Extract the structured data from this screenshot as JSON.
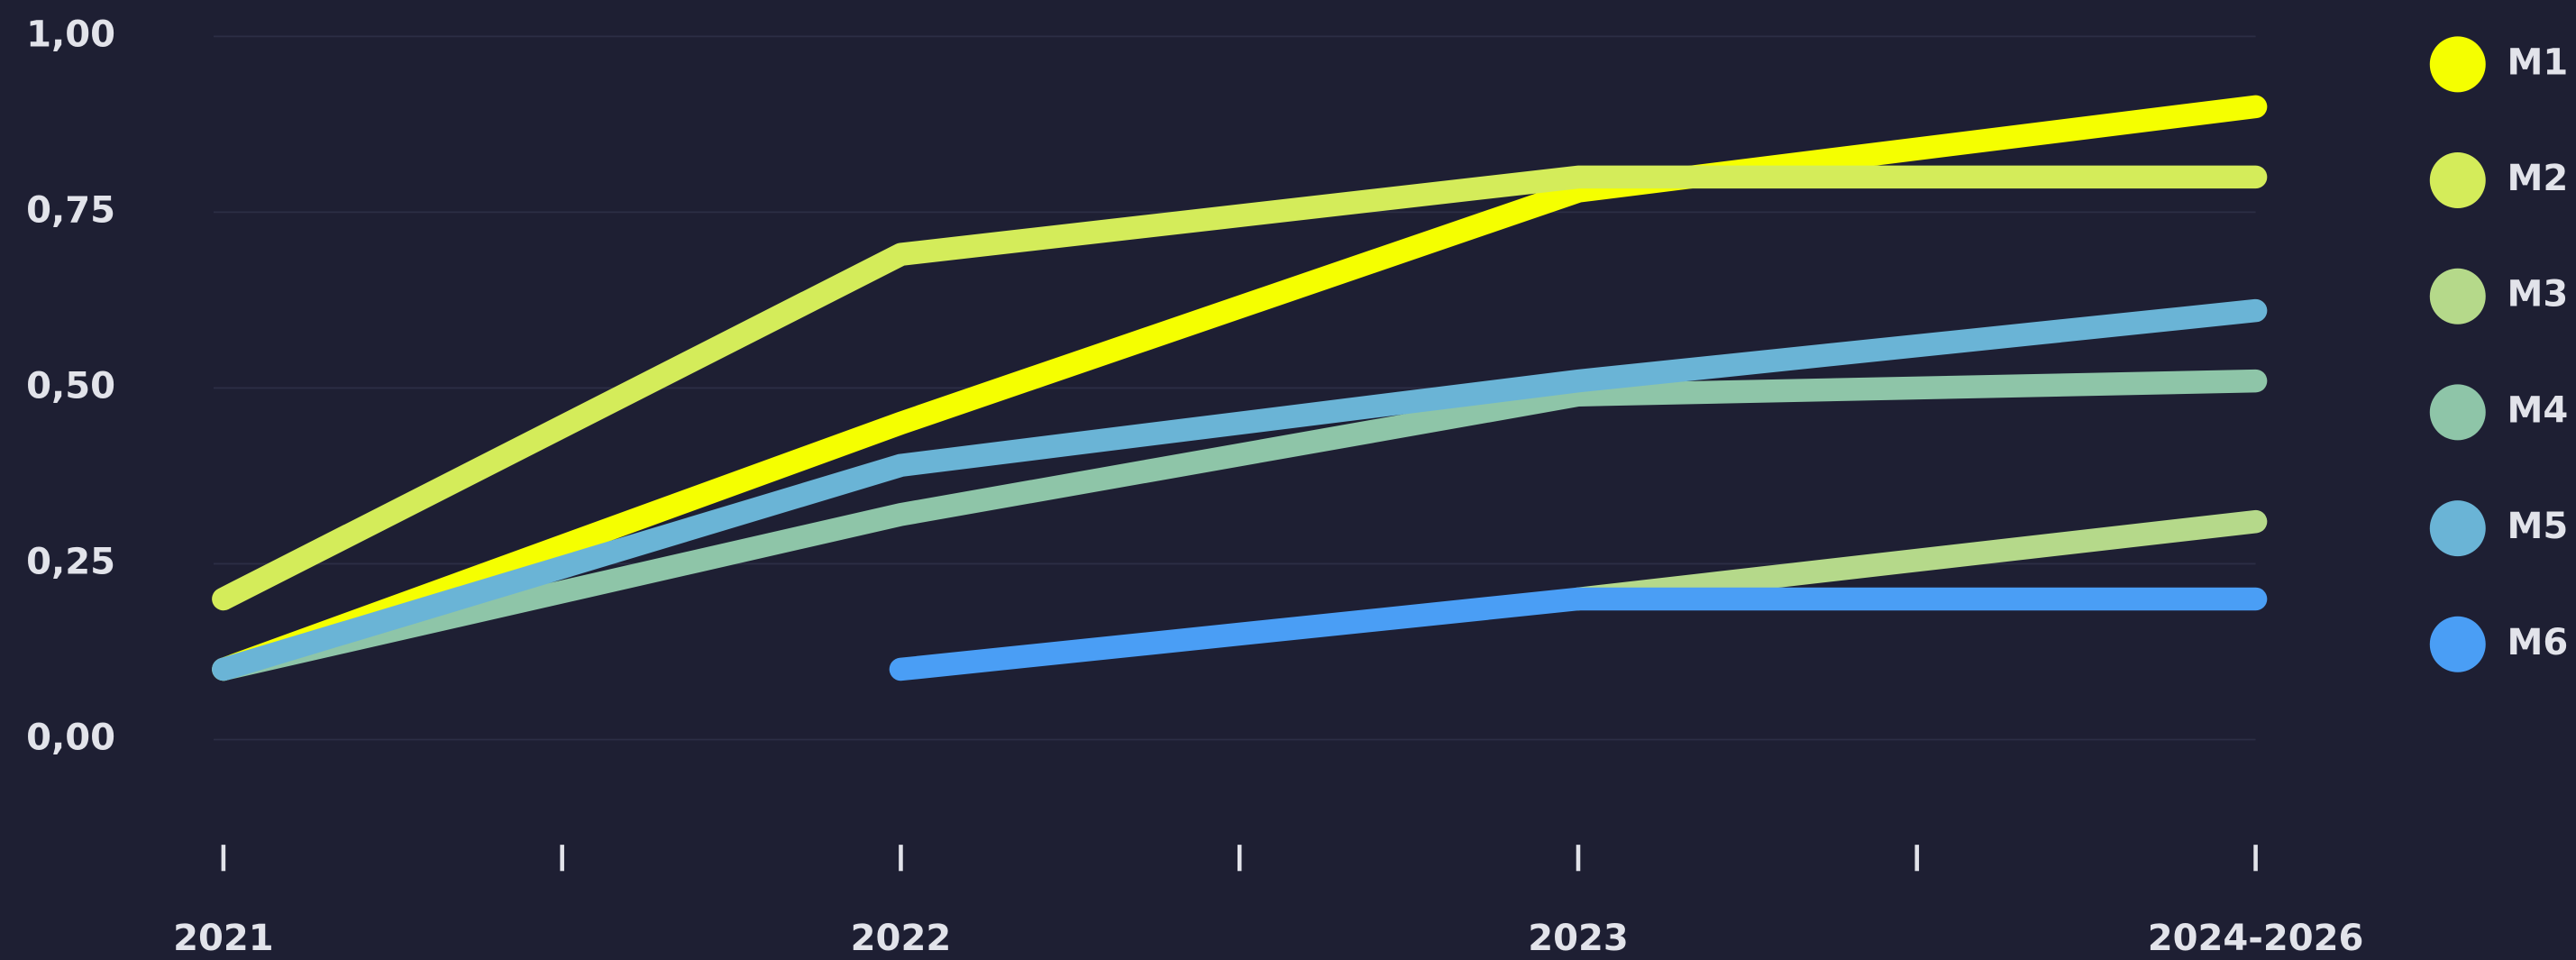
{
  "chart_data": {
    "type": "line",
    "categories": [
      "2021",
      "2022",
      "2023",
      "2024-2026"
    ],
    "series": [
      {
        "name": "M1",
        "color": "#f5ff00",
        "values": [
          0.1,
          0.45,
          0.78,
          0.9
        ]
      },
      {
        "name": "M2",
        "color": "#d4ec5a",
        "values": [
          0.2,
          0.69,
          0.8,
          0.8
        ]
      },
      {
        "name": "M3",
        "color": "#b5d98a",
        "values": [
          null,
          null,
          0.2,
          0.31
        ]
      },
      {
        "name": "M4",
        "color": "#8ec5a8",
        "values": [
          0.1,
          0.32,
          0.49,
          0.51
        ]
      },
      {
        "name": "M5",
        "color": "#6ab4d6",
        "values": [
          0.1,
          0.39,
          0.51,
          0.61
        ]
      },
      {
        "name": "M6",
        "color": "#4a9ef5",
        "values": [
          null,
          0.1,
          0.2,
          0.2
        ]
      }
    ],
    "ylim": [
      0,
      1
    ],
    "yticks": [
      {
        "value": 0,
        "label": "0,00"
      },
      {
        "value": 0.25,
        "label": "0,25"
      },
      {
        "value": 0.5,
        "label": "0,50"
      },
      {
        "value": 0.75,
        "label": "0,75"
      },
      {
        "value": 1,
        "label": "1,00"
      }
    ],
    "grid": true,
    "legend": "right"
  }
}
